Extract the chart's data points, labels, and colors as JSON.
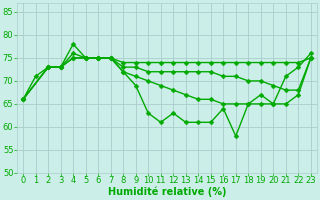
{
  "bg_color": "#cceee8",
  "grid_color": "#aacccc",
  "line_color": "#00aa00",
  "xlim": [
    -0.5,
    23.5
  ],
  "ylim": [
    50,
    87
  ],
  "yticks": [
    50,
    55,
    60,
    65,
    70,
    75,
    80,
    85
  ],
  "xticks": [
    0,
    1,
    2,
    3,
    4,
    5,
    6,
    7,
    8,
    9,
    10,
    11,
    12,
    13,
    14,
    15,
    16,
    17,
    18,
    19,
    20,
    21,
    22,
    23
  ],
  "series": [
    {
      "x": [
        0,
        2,
        3,
        4,
        5,
        6,
        7,
        8,
        9,
        10,
        11,
        12,
        13,
        14,
        15,
        16,
        17,
        18,
        19,
        20,
        21,
        22,
        23
      ],
      "y": [
        66,
        73,
        73,
        76,
        75,
        75,
        75,
        74,
        74,
        74,
        74,
        74,
        74,
        74,
        74,
        74,
        74,
        74,
        74,
        74,
        74,
        74,
        75
      ]
    },
    {
      "x": [
        0,
        2,
        3,
        4,
        5,
        6,
        7,
        8,
        9,
        10,
        11,
        12,
        13,
        14,
        15,
        16,
        17,
        18,
        19,
        20,
        21,
        22,
        23
      ],
      "y": [
        66,
        73,
        73,
        75,
        75,
        75,
        75,
        73,
        73,
        72,
        72,
        72,
        72,
        72,
        72,
        71,
        71,
        70,
        70,
        69,
        68,
        68,
        75
      ]
    },
    {
      "x": [
        0,
        2,
        3,
        4,
        5,
        6,
        7,
        8,
        9,
        10,
        11,
        12,
        13,
        14,
        15,
        16,
        17,
        18,
        19,
        20,
        21,
        22,
        23
      ],
      "y": [
        66,
        73,
        73,
        75,
        75,
        75,
        75,
        72,
        71,
        70,
        69,
        68,
        67,
        66,
        66,
        65,
        65,
        65,
        65,
        65,
        65,
        67,
        75
      ]
    },
    {
      "x": [
        0,
        1,
        2,
        3,
        4,
        5,
        6,
        7,
        8,
        9,
        10,
        11,
        12,
        13,
        14,
        15,
        16,
        17,
        18,
        19,
        20,
        21,
        22,
        23
      ],
      "y": [
        66,
        71,
        73,
        73,
        78,
        75,
        75,
        75,
        72,
        69,
        63,
        61,
        63,
        61,
        61,
        61,
        64,
        58,
        65,
        67,
        65,
        71,
        73,
        76
      ]
    }
  ],
  "xlabel": "Humidité relative (%)",
  "marker": "D",
  "markersize": 2.5,
  "linewidth": 1.0,
  "xlabel_fontsize": 7,
  "tick_fontsize": 6,
  "label_color": "#00aa00"
}
